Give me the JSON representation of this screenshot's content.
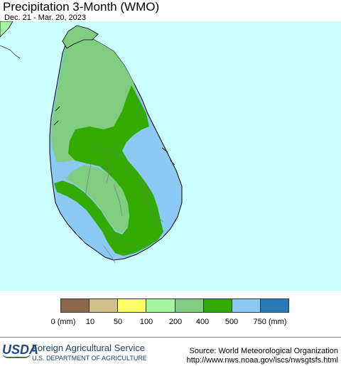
{
  "title": "Precipitation 3-Month (WMO)",
  "date_range": "Dec. 21 - Mar. 20, 2023",
  "legend": {
    "unit_low": "0 (mm)",
    "unit_high": "750 (mm)",
    "labels": [
      "0 (mm)",
      "10",
      "50",
      "100",
      "200",
      "400",
      "500",
      "750 (mm)"
    ],
    "colors": [
      "#8b6a4b",
      "#d2c08a",
      "#ffff66",
      "#a5f5a0",
      "#80cc80",
      "#33aa00",
      "#8ccaf5",
      "#2a7ab5"
    ]
  },
  "colors": {
    "water": "#ccffff",
    "zone_200_400": "#80cc80",
    "zone_400_500": "#33aa00",
    "zone_500_750": "#8ccaf5",
    "zone_100_200": "#a5f5a0"
  },
  "footer": {
    "logo_text": "USDA",
    "agency": "Foreign Agricultural Service",
    "department": "U.S. DEPARTMENT OF AGRICULTURE",
    "source": "Source: World Meteorological Organization",
    "url": "http://www.nws.noaa.gov/iscs/nwsgtsfs.html"
  }
}
